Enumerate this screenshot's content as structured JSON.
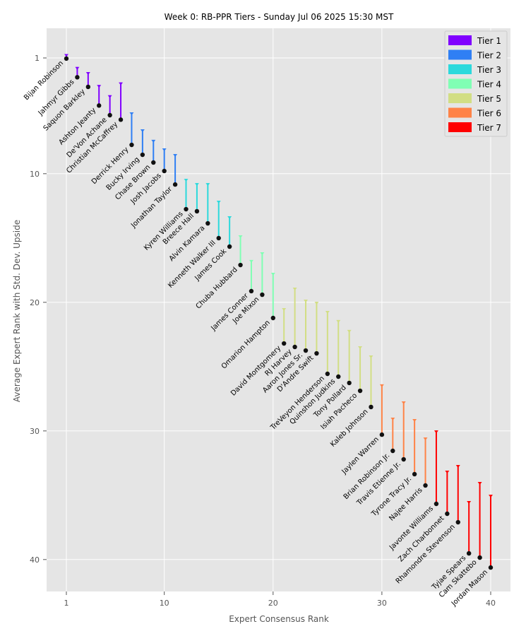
{
  "chart_data": {
    "type": "errorbar",
    "title": "Week 0: RB-PPR Tiers - Sunday Jul 06 2025 15:30 MST",
    "xlabel": "Expert Consensus Rank",
    "ylabel": "Average Expert Rank with Std. Dev. Upside",
    "xlim": [
      -1,
      42
    ],
    "ylim": [
      42.6,
      -1.2
    ],
    "y_inverted": true,
    "grid": true,
    "xticks": [
      1,
      10,
      20,
      30,
      40
    ],
    "yticks": [
      1,
      10,
      20,
      30,
      40
    ],
    "legend_position": "top-right",
    "tiers": [
      {
        "name": "Tier 1",
        "color": "#8000ff"
      },
      {
        "name": "Tier 2",
        "color": "#2f7ff4"
      },
      {
        "name": "Tier 3",
        "color": "#2cd9dc"
      },
      {
        "name": "Tier 4",
        "color": "#80ffb4"
      },
      {
        "name": "Tier 5",
        "color": "#d2de84"
      },
      {
        "name": "Tier 6",
        "color": "#ff8347"
      },
      {
        "name": "Tier 7",
        "color": "#ff0000"
      }
    ],
    "players": [
      {
        "name": "Bijan Robinson",
        "x": 1,
        "avg": 1.05,
        "upside": 0.7,
        "tier": 1
      },
      {
        "name": "Jahmyr Gibbs",
        "x": 2,
        "avg": 2.5,
        "upside": 1.7,
        "tier": 1
      },
      {
        "name": "Saquon Barkley",
        "x": 3,
        "avg": 3.25,
        "upside": 2.1,
        "tier": 1
      },
      {
        "name": "Ashton Jeanty",
        "x": 4,
        "avg": 4.7,
        "upside": 3.1,
        "tier": 1
      },
      {
        "name": "De'Von Achane",
        "x": 5,
        "avg": 5.45,
        "upside": 3.9,
        "tier": 1
      },
      {
        "name": "Christian McCaffrey",
        "x": 6,
        "avg": 5.8,
        "upside": 2.9,
        "tier": 1
      },
      {
        "name": "Derrick Henry",
        "x": 7,
        "avg": 7.76,
        "upside": 5.23,
        "tier": 2
      },
      {
        "name": "Bucky Irving",
        "x": 8,
        "avg": 8.53,
        "upside": 6.55,
        "tier": 2
      },
      {
        "name": "Chase Brown",
        "x": 9,
        "avg": 9.13,
        "upside": 7.37,
        "tier": 2
      },
      {
        "name": "Josh Jacobs",
        "x": 10,
        "avg": 9.79,
        "upside": 8.03,
        "tier": 2
      },
      {
        "name": "Jonathan Taylor",
        "x": 11,
        "avg": 10.84,
        "upside": 8.47,
        "tier": 2
      },
      {
        "name": "Kyren Williams",
        "x": 12,
        "avg": 12.76,
        "upside": 10.4,
        "tier": 3
      },
      {
        "name": "Breece Hall",
        "x": 13,
        "avg": 12.92,
        "upside": 10.73,
        "tier": 3
      },
      {
        "name": "Alvin Kamara",
        "x": 14,
        "avg": 13.86,
        "upside": 10.73,
        "tier": 3
      },
      {
        "name": "Kenneth Walker III",
        "x": 15,
        "avg": 15.01,
        "upside": 12.1,
        "tier": 3
      },
      {
        "name": "James Cook",
        "x": 16,
        "avg": 15.67,
        "upside": 13.31,
        "tier": 3
      },
      {
        "name": "Chuba Hubbard",
        "x": 17,
        "avg": 17.1,
        "upside": 14.79,
        "tier": 4
      },
      {
        "name": "James Conner",
        "x": 18,
        "avg": 19.13,
        "upside": 16.71,
        "tier": 4
      },
      {
        "name": "Joe Mixon",
        "x": 19,
        "avg": 19.41,
        "upside": 16.11,
        "tier": 4
      },
      {
        "name": "Omarion Hampton",
        "x": 20,
        "avg": 21.22,
        "upside": 17.7,
        "tier": 4
      },
      {
        "name": "David Montgomery",
        "x": 21,
        "avg": 23.2,
        "upside": 20.45,
        "tier": 5
      },
      {
        "name": "RJ Harvey",
        "x": 22,
        "avg": 23.47,
        "upside": 18.86,
        "tier": 5
      },
      {
        "name": "Aaron Jones Sr.",
        "x": 23,
        "avg": 23.75,
        "upside": 19.79,
        "tier": 5
      },
      {
        "name": "D'Andre Swift",
        "x": 24,
        "avg": 23.97,
        "upside": 19.96,
        "tier": 5
      },
      {
        "name": "TreVeyon Henderson",
        "x": 25,
        "avg": 25.56,
        "upside": 20.67,
        "tier": 5
      },
      {
        "name": "Quinshon Judkins",
        "x": 26,
        "avg": 25.78,
        "upside": 21.38,
        "tier": 5
      },
      {
        "name": "Tony Pollard",
        "x": 27,
        "avg": 26.27,
        "upside": 22.15,
        "tier": 5
      },
      {
        "name": "Isiah Pacheco",
        "x": 28,
        "avg": 26.88,
        "upside": 23.42,
        "tier": 5
      },
      {
        "name": "Kaleb Johnson",
        "x": 29,
        "avg": 28.14,
        "upside": 24.13,
        "tier": 5
      },
      {
        "name": "Jaylen Warren",
        "x": 30,
        "avg": 30.29,
        "upside": 26.38,
        "tier": 6
      },
      {
        "name": "Brian Robinson Jr.",
        "x": 31,
        "avg": 31.55,
        "upside": 28.97,
        "tier": 6
      },
      {
        "name": "Travis Etienne Jr.",
        "x": 32,
        "avg": 32.21,
        "upside": 27.7,
        "tier": 6
      },
      {
        "name": "Tyrone Tracy Jr.",
        "x": 33,
        "avg": 33.36,
        "upside": 29.08,
        "tier": 6
      },
      {
        "name": "Najee Harris",
        "x": 34,
        "avg": 34.24,
        "upside": 30.51,
        "tier": 6
      },
      {
        "name": "Javonte Williams",
        "x": 35,
        "avg": 35.67,
        "upside": 29.96,
        "tier": 7
      },
      {
        "name": "Zach Charbonnet",
        "x": 36,
        "avg": 36.44,
        "upside": 33.09,
        "tier": 7
      },
      {
        "name": "Rhamondre Stevenson",
        "x": 37,
        "avg": 37.1,
        "upside": 32.65,
        "tier": 7
      },
      {
        "name": "Tyjae Spears",
        "x": 38,
        "avg": 39.52,
        "upside": 35.45,
        "tier": 7
      },
      {
        "name": "Cam Skattebo",
        "x": 39,
        "avg": 39.85,
        "upside": 33.97,
        "tier": 7
      },
      {
        "name": "Jordan Mason",
        "x": 40,
        "avg": 40.62,
        "upside": 34.96,
        "tier": 7
      }
    ]
  }
}
